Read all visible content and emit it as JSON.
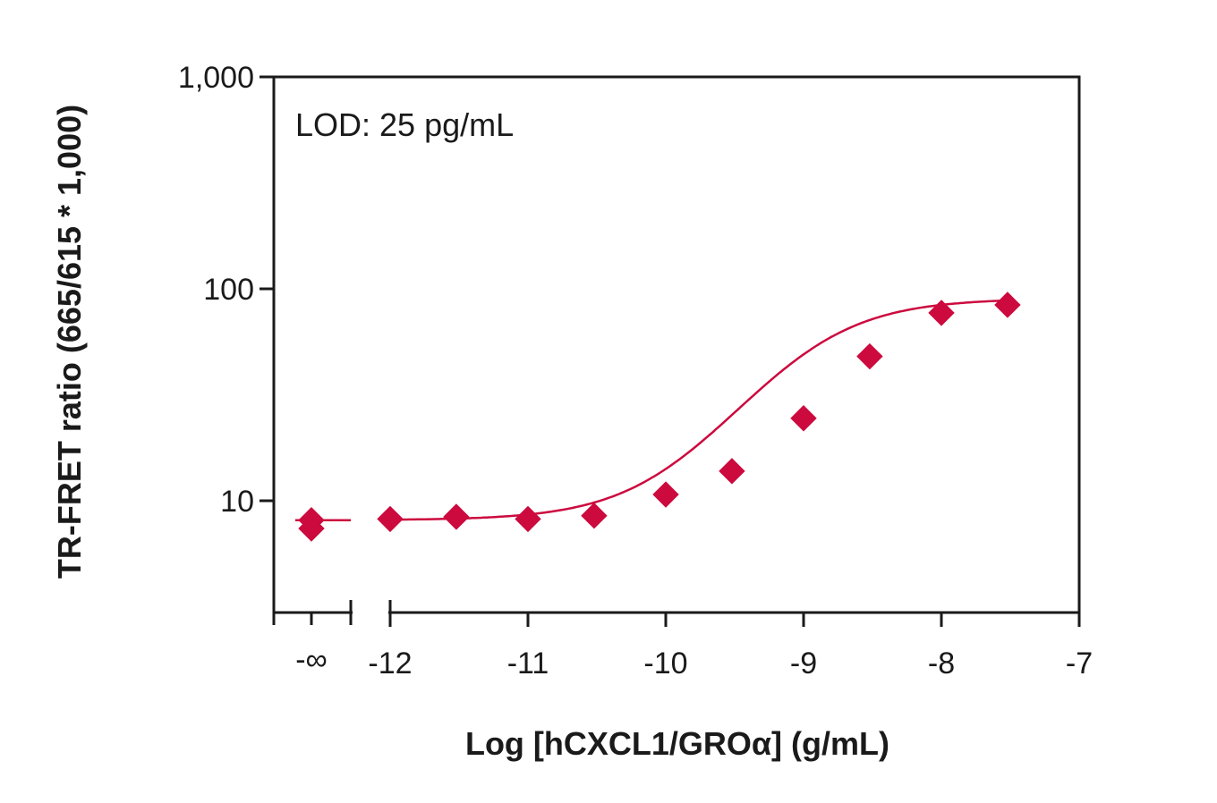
{
  "chart_data": {
    "type": "scatter",
    "title": "",
    "xlabel": "Log [hCXCL1/GROα] (g/mL)",
    "ylabel": "TR-FRET ratio (665/615 * 1,000)",
    "annotation": "LOD: 25 pg/mL",
    "y_scale": "log",
    "ylim": [
      3.5,
      1000
    ],
    "xlim": [
      -12.85,
      -7
    ],
    "y_ticks": [
      {
        "value": 10,
        "label": "10"
      },
      {
        "value": 100,
        "label": "100"
      },
      {
        "value": 1000,
        "label": "1,000"
      }
    ],
    "x_ticks": [
      {
        "value": -12,
        "label": "-12"
      },
      {
        "value": -11,
        "label": "-11"
      },
      {
        "value": -10,
        "label": "-10"
      },
      {
        "value": -9,
        "label": "-9"
      },
      {
        "value": -8,
        "label": "-8"
      },
      {
        "value": -7,
        "label": "-7"
      }
    ],
    "x_minor_ticks": [
      -12.85,
      -12.28
    ],
    "zero_label": "-∞",
    "zero_points": [
      8.1,
      7.4
    ],
    "zero_line_y": 8.1,
    "series": [
      {
        "x": [
          -12,
          -11.52,
          -11,
          -10.52,
          -10,
          -9.52,
          -9,
          -8.52,
          -8,
          -7.52
        ],
        "y": [
          8.2,
          8.4,
          8.2,
          8.5,
          10.7,
          13.8,
          24.5,
          48,
          77,
          84
        ]
      }
    ],
    "fit": {
      "model": "4PL",
      "bottom": 8.1,
      "top": 90,
      "ec50_log": -9.0,
      "hill": 1.1
    },
    "color": "#cc0a3e",
    "grid": false,
    "legend": "none"
  }
}
